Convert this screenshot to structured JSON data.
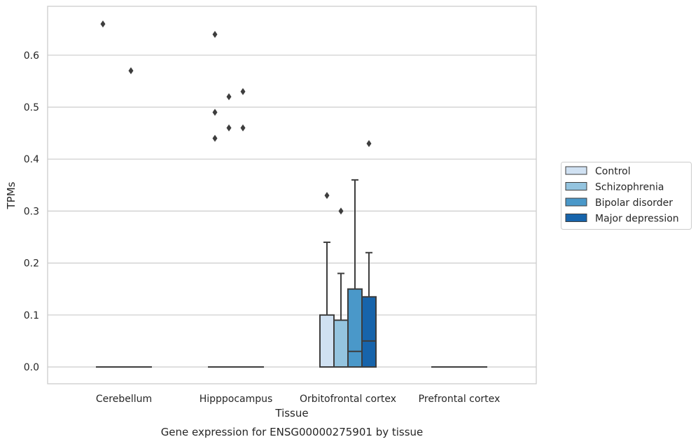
{
  "chart_data": {
    "type": "box",
    "title": "",
    "caption": "Gene expression for ENSG00000275901 by tissue",
    "xlabel": "Tissue",
    "ylabel": "TPMs",
    "ylim": [
      -0.033,
      0.693
    ],
    "yticks": [
      0.0,
      0.1,
      0.2,
      0.3,
      0.4,
      0.5,
      0.6
    ],
    "ytick_labels": [
      "0.0",
      "0.1",
      "0.2",
      "0.3",
      "0.4",
      "0.5",
      "0.6"
    ],
    "grid": "horizontal",
    "legend_position": "right",
    "categories": [
      "Cerebellum",
      "Hipppocampus",
      "Orbitofrontal cortex",
      "Prefrontal cortex"
    ],
    "series": [
      {
        "name": "Control",
        "color": "#d0e1f2",
        "boxes": [
          {
            "whislo": 0,
            "q1": 0,
            "med": 0,
            "q3": 0,
            "whishi": 0,
            "fliers": [
              0.66
            ]
          },
          {
            "whislo": 0,
            "q1": 0,
            "med": 0,
            "q3": 0,
            "whishi": 0,
            "fliers": [
              0.64,
              0.49,
              0.44
            ]
          },
          {
            "whislo": 0,
            "q1": 0,
            "med": 0,
            "q3": 0.1,
            "whishi": 0.24,
            "fliers": [
              0.33
            ]
          },
          {
            "whislo": 0,
            "q1": 0,
            "med": 0,
            "q3": 0,
            "whishi": 0,
            "fliers": []
          }
        ]
      },
      {
        "name": "Schizophrenia",
        "color": "#94c4df",
        "boxes": [
          {
            "whislo": 0,
            "q1": 0,
            "med": 0,
            "q3": 0,
            "whishi": 0,
            "fliers": []
          },
          {
            "whislo": 0,
            "q1": 0,
            "med": 0,
            "q3": 0,
            "whishi": 0,
            "fliers": [
              0.52,
              0.46
            ]
          },
          {
            "whislo": 0,
            "q1": 0,
            "med": 0,
            "q3": 0.09,
            "whishi": 0.18,
            "fliers": [
              0.3
            ]
          },
          {
            "whislo": 0,
            "q1": 0,
            "med": 0,
            "q3": 0,
            "whishi": 0,
            "fliers": []
          }
        ]
      },
      {
        "name": "Bipolar disorder",
        "color": "#4a98c9",
        "boxes": [
          {
            "whislo": 0,
            "q1": 0,
            "med": 0,
            "q3": 0,
            "whishi": 0,
            "fliers": [
              0.57
            ]
          },
          {
            "whislo": 0,
            "q1": 0,
            "med": 0,
            "q3": 0,
            "whishi": 0,
            "fliers": [
              0.53,
              0.46
            ]
          },
          {
            "whislo": 0,
            "q1": 0,
            "med": 0.03,
            "q3": 0.15,
            "whishi": 0.36,
            "fliers": []
          },
          {
            "whislo": 0,
            "q1": 0,
            "med": 0,
            "q3": 0,
            "whishi": 0,
            "fliers": []
          }
        ]
      },
      {
        "name": "Major depression",
        "color": "#1764ab",
        "boxes": [
          {
            "whislo": 0,
            "q1": 0,
            "med": 0,
            "q3": 0,
            "whishi": 0,
            "fliers": []
          },
          {
            "whislo": 0,
            "q1": 0,
            "med": 0,
            "q3": 0,
            "whishi": 0,
            "fliers": []
          },
          {
            "whislo": 0,
            "q1": 0,
            "med": 0.05,
            "q3": 0.135,
            "whishi": 0.22,
            "fliers": [
              0.43
            ]
          },
          {
            "whislo": 0,
            "q1": 0,
            "med": 0,
            "q3": 0,
            "whishi": 0,
            "fliers": []
          }
        ]
      }
    ]
  }
}
